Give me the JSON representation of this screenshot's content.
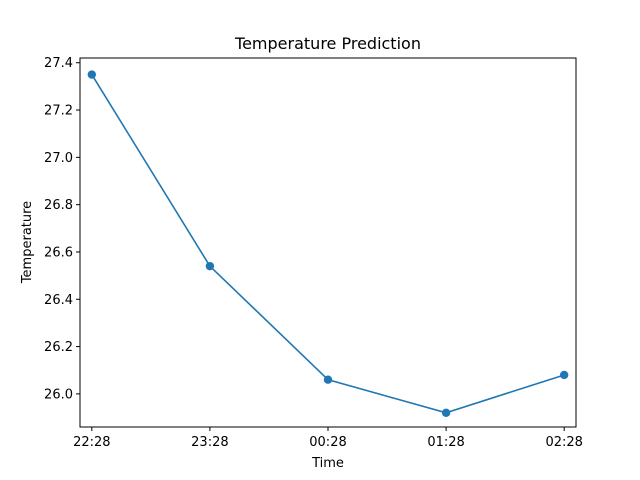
{
  "chart_data": {
    "type": "line",
    "title": "Temperature Prediction",
    "xlabel": "Time",
    "ylabel": "Temperature",
    "categories": [
      "22:28",
      "23:28",
      "00:28",
      "01:28",
      "02:28"
    ],
    "series": [
      {
        "values": [
          27.35,
          26.54,
          26.06,
          25.92,
          26.08
        ],
        "color": "#1f77b4",
        "marker": "circle"
      }
    ],
    "ylim": [
      25.86,
      27.42
    ],
    "yticks": [
      "26.0",
      "26.2",
      "26.4",
      "26.6",
      "26.8",
      "27.0",
      "27.2",
      "27.4"
    ],
    "grid": false,
    "legend": "none"
  }
}
